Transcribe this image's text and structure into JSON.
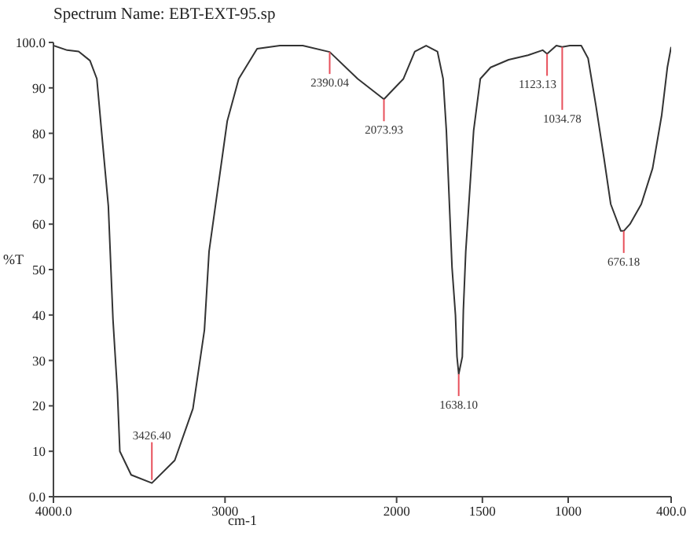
{
  "chart_data": {
    "type": "line",
    "title": "Spectrum Name: EBT-EXT-95.sp",
    "xlabel": "cm-1",
    "ylabel": "%T",
    "x": [
      4000,
      3920,
      3853,
      3787,
      3747,
      3720,
      3680,
      3653,
      3627,
      3613,
      3547,
      3426.4,
      3293,
      3187,
      3120,
      3093,
      2987,
      2920,
      2813,
      2680,
      2547,
      2390,
      2227,
      2074,
      1960,
      1894,
      1828,
      1762,
      1729,
      1710,
      1677,
      1657,
      1648,
      1638,
      1617,
      1611,
      1597,
      1551,
      1512,
      1452,
      1347,
      1234,
      1149,
      1123,
      1069,
      1035,
      990,
      924,
      884,
      838,
      792,
      752,
      693,
      676,
      640,
      574,
      508,
      455,
      422,
      400
    ],
    "series": [
      {
        "color": "#333333",
        "values": [
          99.3,
          98.3,
          98,
          96,
          92,
          80.6,
          64,
          39,
          23,
          10,
          4.8,
          3,
          8,
          19.4,
          36.7,
          54,
          82.7,
          92,
          98.6,
          99.3,
          99.3,
          97.9,
          92,
          87.5,
          92,
          98,
          99.3,
          98,
          92,
          80.6,
          50.5,
          40,
          30.8,
          27,
          30.8,
          41,
          54,
          80.6,
          92,
          94.5,
          96.2,
          97.2,
          98.3,
          97.5,
          99.3,
          99,
          99.3,
          99.3,
          96.5,
          86,
          74.7,
          64.4,
          58.5,
          58.5,
          60,
          64.4,
          72.3,
          84,
          94.5,
          99
        ]
      }
    ],
    "xlim": [
      4000,
      400
    ],
    "xticks": [
      {
        "value": 4000,
        "label": "4000.0"
      },
      3000,
      2000,
      1500,
      1000,
      {
        "value": 400,
        "label": "400.0"
      }
    ],
    "ylim": [
      0,
      100
    ],
    "yticks": [
      {
        "value": 0,
        "label": "0.0"
      },
      10,
      20,
      30,
      40,
      50,
      60,
      70,
      80,
      90,
      {
        "value": 100,
        "label": "100.0"
      }
    ],
    "grid": false,
    "legend": false,
    "marker": "none",
    "annotations": [
      {
        "text": "3426.40",
        "x": 3426.4,
        "y": 3
      },
      {
        "text": "2390.04",
        "x": 2390.04,
        "y": 97.9
      },
      {
        "text": "2073.93",
        "x": 2073.93,
        "y": 87.5
      },
      {
        "text": "1638.10",
        "x": 1638.1,
        "y": 27
      },
      {
        "text": "1123.13",
        "x": 1123.13,
        "y": 97.5
      },
      {
        "text": "1034.78",
        "x": 1034.78,
        "y": 99
      },
      {
        "text": "676.18",
        "x": 676.18,
        "y": 58.5
      }
    ]
  }
}
